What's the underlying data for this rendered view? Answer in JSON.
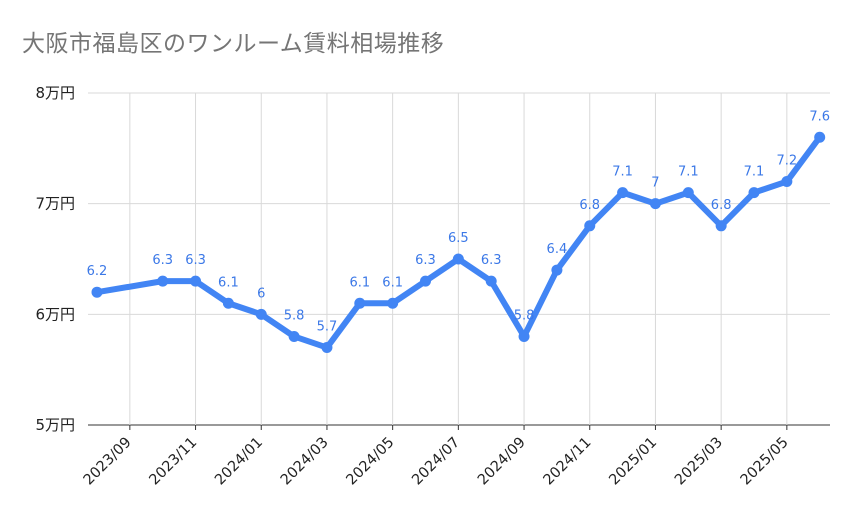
{
  "chart_data": {
    "type": "line",
    "title": "大阪市福島区のワンルーム賃料相場推移",
    "xlabel": "",
    "ylabel": "",
    "ylim": [
      5,
      8
    ],
    "y_ticks": [
      {
        "value": 5,
        "label": "5万円"
      },
      {
        "value": 6,
        "label": "6万円"
      },
      {
        "value": 7,
        "label": "7万円"
      },
      {
        "value": 8,
        "label": "8万円"
      }
    ],
    "x_tick_labels": [
      "2023/09",
      "2023/11",
      "2024/01",
      "2024/03",
      "2024/05",
      "2024/07",
      "2024/09",
      "2024/11",
      "2025/01",
      "2025/03",
      "2025/05"
    ],
    "categories": [
      "2023/08",
      "2023/09",
      "2023/10",
      "2023/11",
      "2023/12",
      "2024/01",
      "2024/02",
      "2024/03",
      "2024/04",
      "2024/05",
      "2024/06",
      "2024/07",
      "2024/08",
      "2024/09",
      "2024/10",
      "2024/11",
      "2024/12",
      "2025/01",
      "2025/02",
      "2025/03",
      "2025/04",
      "2025/05",
      "2025/06"
    ],
    "series": [
      {
        "name": "ワンルーム賃料",
        "color": "#4285f4",
        "values": [
          6.2,
          null,
          6.3,
          6.3,
          6.1,
          6.0,
          5.8,
          5.7,
          6.1,
          6.1,
          6.3,
          6.5,
          6.3,
          5.8,
          6.4,
          6.8,
          7.1,
          7.0,
          7.1,
          6.8,
          7.1,
          7.2,
          7.6
        ],
        "labels": [
          "6.2",
          "",
          "6.3",
          "6.3",
          "6.1",
          "6",
          "5.8",
          "5.7",
          "6.1",
          "6.1",
          "6.3",
          "6.5",
          "6.3",
          "5.8",
          "6.4",
          "6.8",
          "7.1",
          "7",
          "7.1",
          "6.8",
          "7.1",
          "7.2",
          "7.6"
        ]
      }
    ]
  }
}
